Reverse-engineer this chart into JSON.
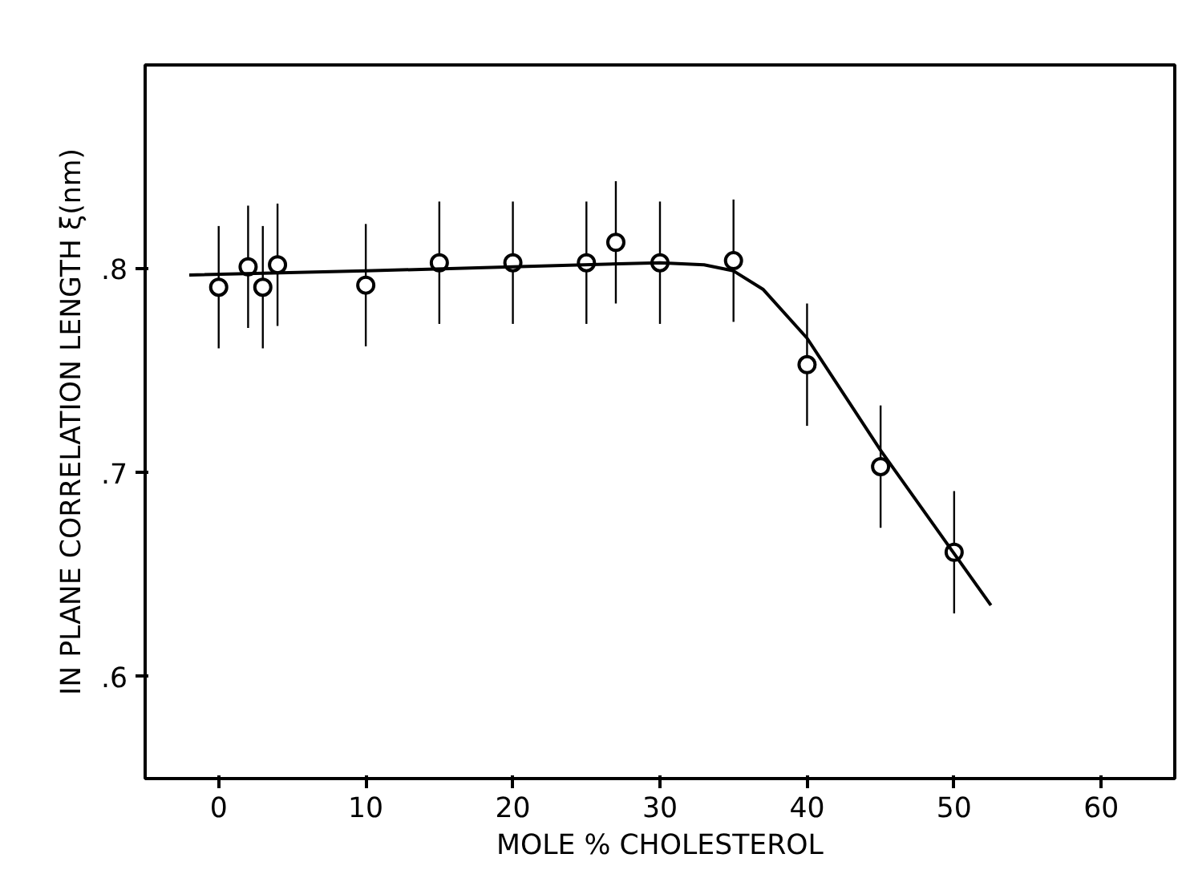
{
  "chart_data": {
    "type": "scatter",
    "xlabel": "MOLE % CHOLESTEROL",
    "ylabel": "IN PLANE CORRELATION LENGTH ξ(nm)",
    "xlim": [
      -5,
      65
    ],
    "ylim": [
      0.55,
      0.9
    ],
    "xticks": [
      0,
      10,
      20,
      30,
      40,
      50,
      60
    ],
    "yticks": [
      {
        "value": 0.6,
        "label": ".6"
      },
      {
        "value": 0.7,
        "label": ".7"
      },
      {
        "value": 0.8,
        "label": ".8"
      }
    ],
    "grid": false,
    "series": [
      {
        "marker": "circle",
        "color": "#000000",
        "x": [
          0,
          2,
          3,
          4,
          10,
          15,
          20,
          25,
          27,
          30,
          35,
          40,
          45,
          50
        ],
        "values": [
          0.791,
          0.801,
          0.791,
          0.802,
          0.792,
          0.803,
          0.803,
          0.803,
          0.813,
          0.803,
          0.804,
          0.753,
          0.703,
          0.661
        ],
        "errors": [
          0.03,
          0.03,
          0.03,
          0.03,
          0.03,
          0.03,
          0.03,
          0.03,
          0.03,
          0.03,
          0.03,
          0.03,
          0.03,
          0.03
        ]
      },
      {
        "type": "line",
        "marker": "none",
        "color": "#000000",
        "x": [
          -2,
          10,
          20,
          30,
          33,
          35,
          37,
          40,
          45,
          52.5
        ],
        "values": [
          0.797,
          0.799,
          0.801,
          0.803,
          0.802,
          0.799,
          0.79,
          0.766,
          0.711,
          0.635
        ]
      }
    ]
  }
}
